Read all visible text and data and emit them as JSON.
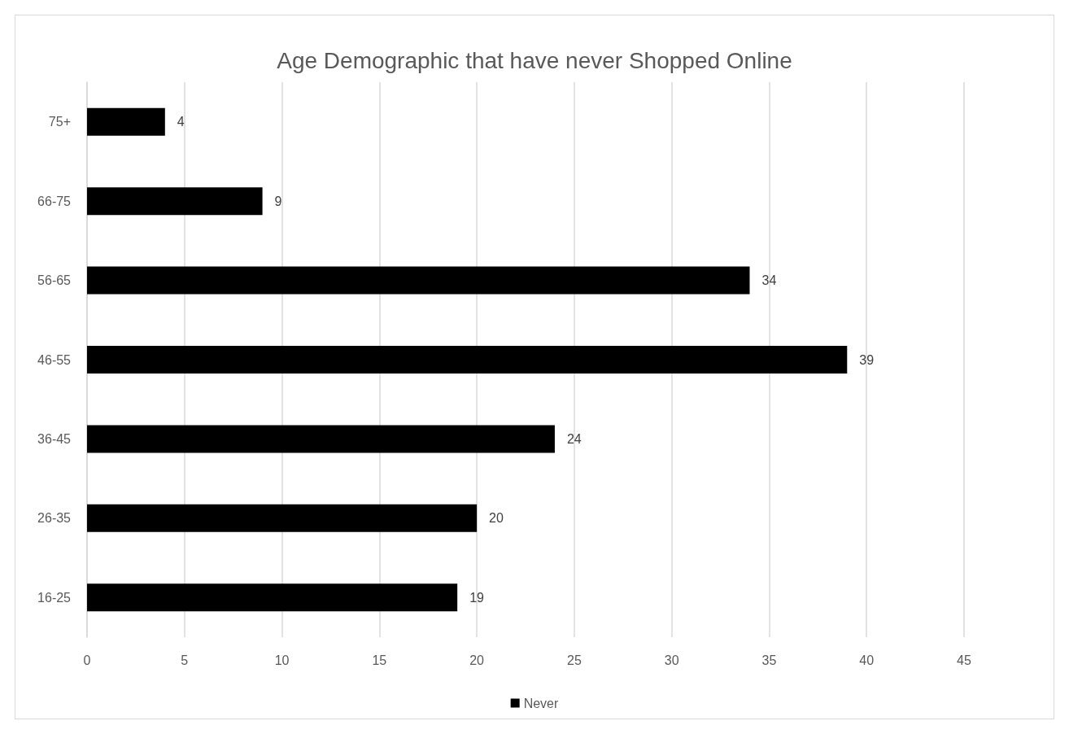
{
  "chart_data": {
    "type": "bar",
    "orientation": "horizontal",
    "title": "Age Demographic that have never Shopped Online",
    "categories": [
      "75+",
      "66-75",
      "56-65",
      "46-55",
      "36-45",
      "26-35",
      "16-25"
    ],
    "series": [
      {
        "name": "Never",
        "color": "#000000",
        "values": [
          4,
          9,
          34,
          39,
          24,
          20,
          19
        ]
      }
    ],
    "xlim": [
      0,
      45
    ],
    "xticks": [
      0,
      5,
      10,
      15,
      20,
      25,
      30,
      35,
      40,
      45
    ],
    "grid": "x",
    "legend": "bottom",
    "data_labels": true
  }
}
